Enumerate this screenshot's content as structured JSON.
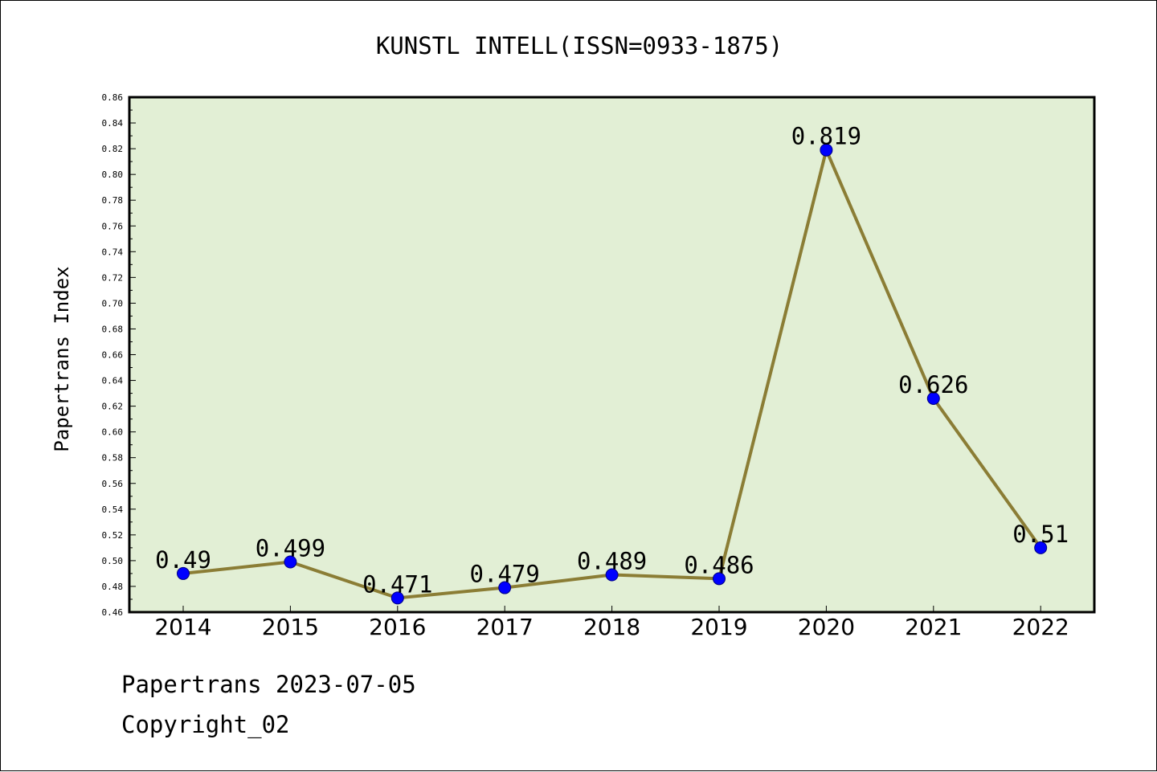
{
  "chart_data": {
    "type": "line",
    "title": "KUNSTL INTELL(ISSN=0933-1875)",
    "xlabel": "",
    "ylabel": "Papertrans Index",
    "categories": [
      "2014",
      "2015",
      "2016",
      "2017",
      "2018",
      "2019",
      "2020",
      "2021",
      "2022"
    ],
    "values": [
      0.49,
      0.499,
      0.471,
      0.479,
      0.489,
      0.486,
      0.819,
      0.626,
      0.51
    ],
    "data_labels": [
      "0.49",
      "0.499",
      "0.471",
      "0.479",
      "0.489",
      "0.486",
      "0.819",
      "0.626",
      "0.51"
    ],
    "ylim": [
      0.46,
      0.86
    ],
    "y_ticks": [
      "0.46",
      "0.48",
      "0.50",
      "0.52",
      "0.54",
      "0.56",
      "0.58",
      "0.60",
      "0.62",
      "0.64",
      "0.66",
      "0.68",
      "0.70",
      "0.72",
      "0.74",
      "0.76",
      "0.78",
      "0.80",
      "0.82",
      "0.84",
      "0.86"
    ],
    "grid": false,
    "colors": {
      "plot_background": "#e2efd5",
      "line": "#8b7d35",
      "marker_fill": "#0000ff",
      "marker_stroke": "#000080"
    }
  },
  "footer": {
    "line1": "Papertrans 2023-07-05",
    "line2": "Copyright_02"
  }
}
